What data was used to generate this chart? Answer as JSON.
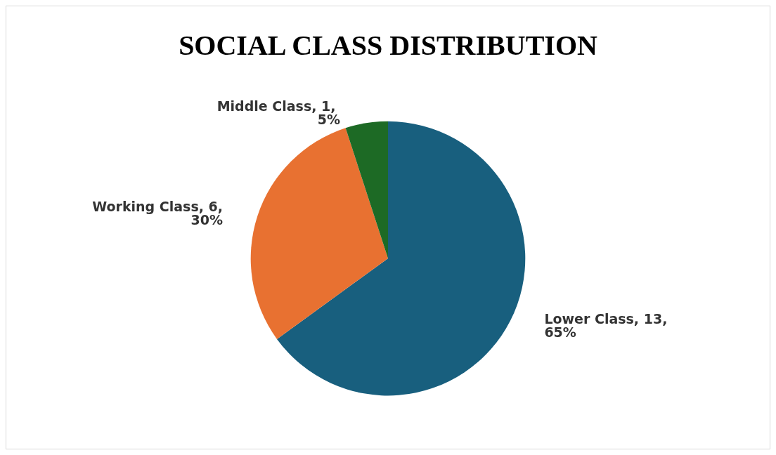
{
  "chart_data": {
    "type": "pie",
    "title": "SOCIAL CLASS DISTRIBUTION",
    "categories": [
      "Lower Class",
      "Working Class",
      "Middle Class"
    ],
    "values": [
      13,
      6,
      1
    ],
    "colors": [
      "#185f7e",
      "#e87131",
      "#1d6a25"
    ],
    "value_labels": [
      "13, 65%",
      "6, 30%",
      "1, 5%"
    ],
    "legend": false
  }
}
